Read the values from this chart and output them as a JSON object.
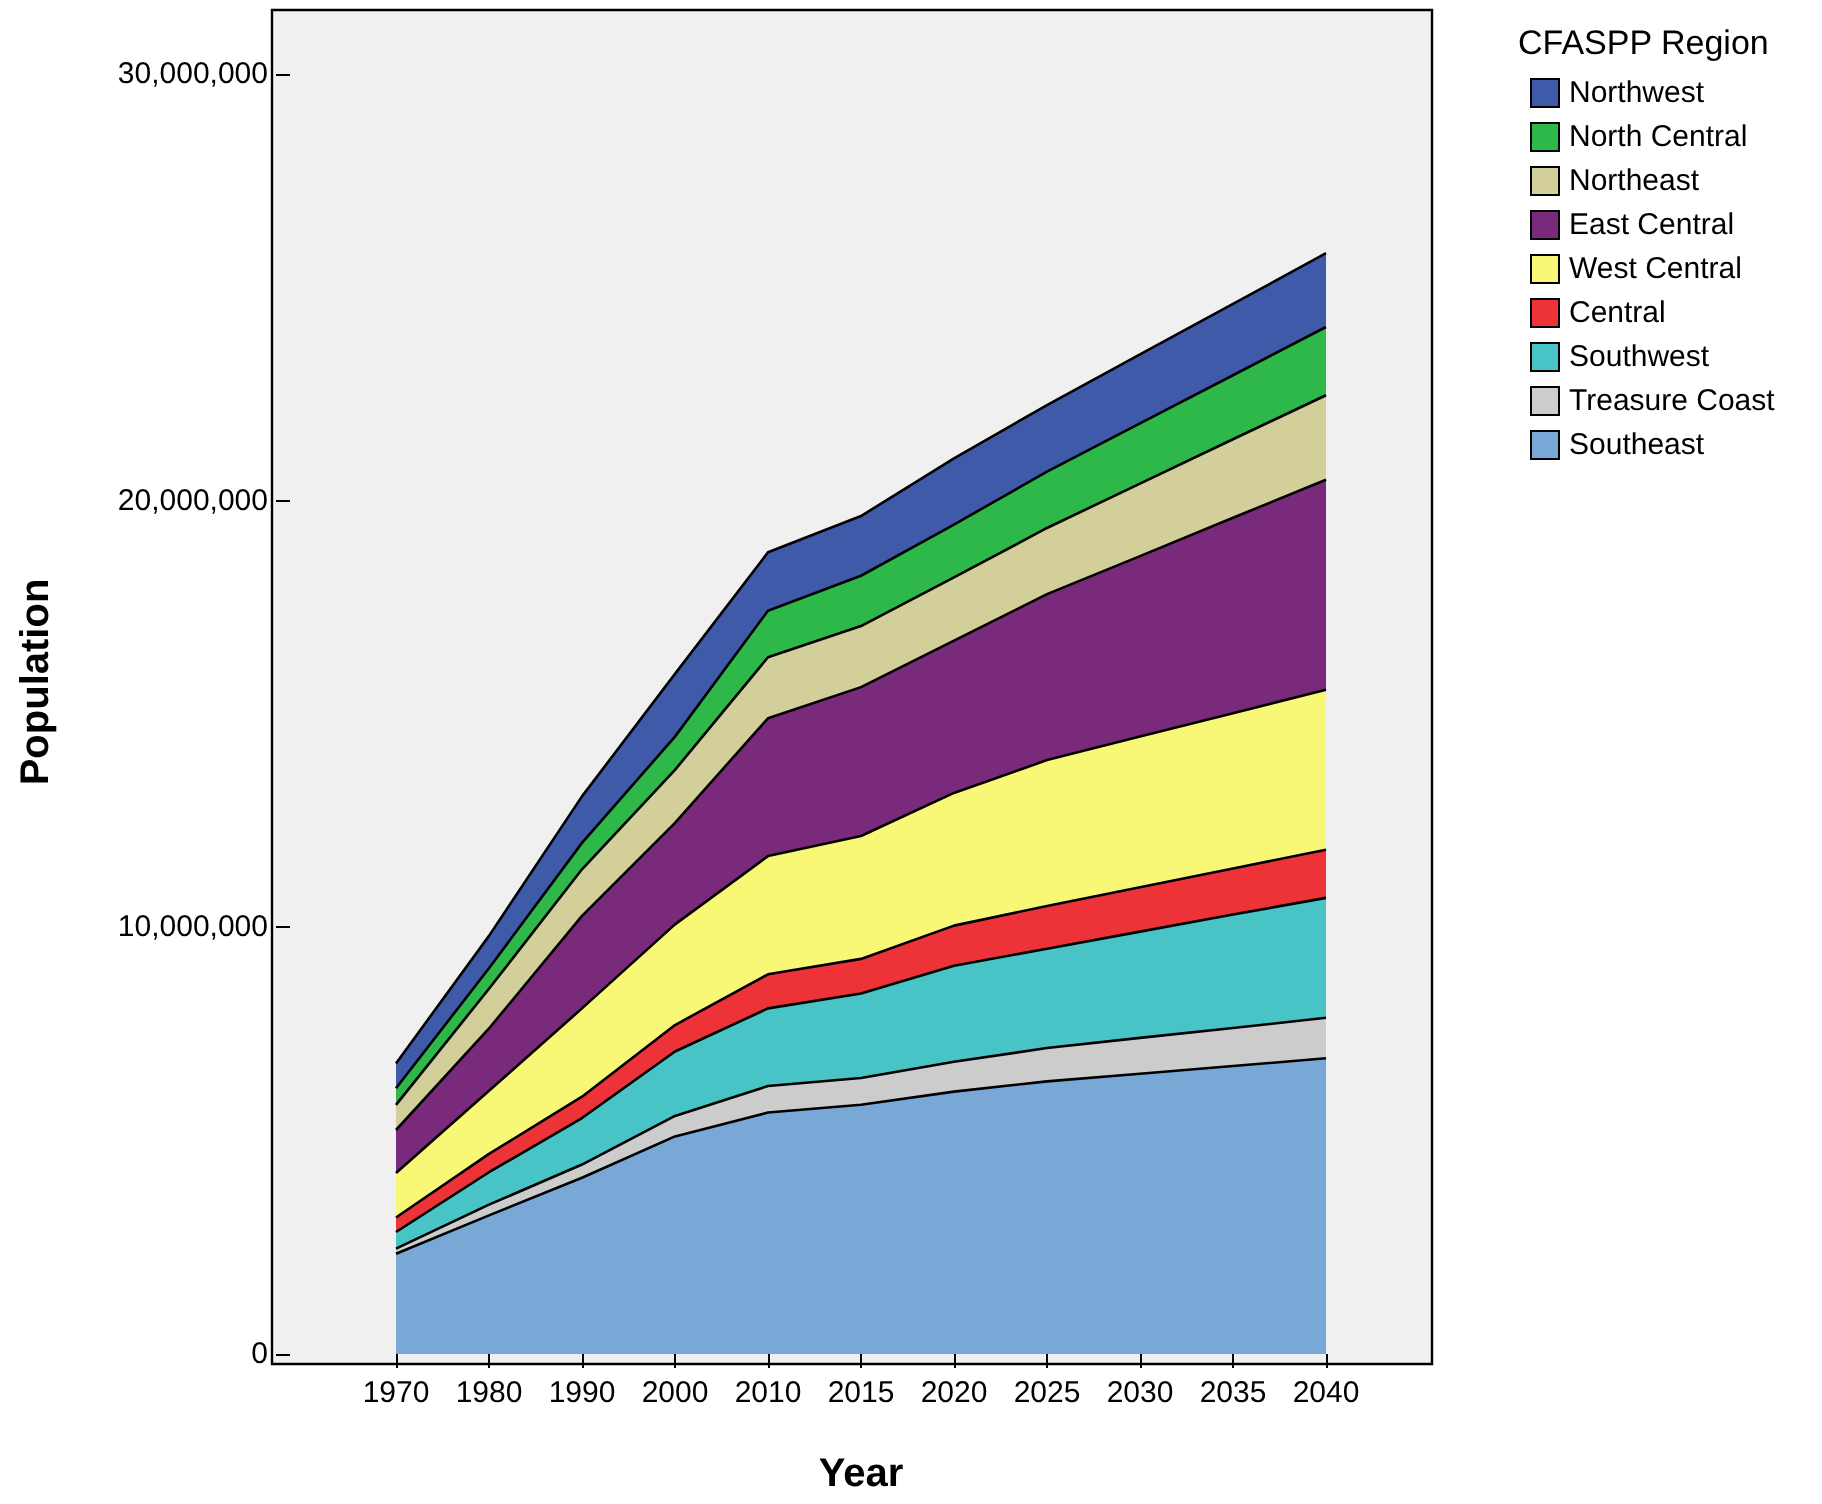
{
  "chart_data": {
    "type": "area",
    "stacked": true,
    "xlabel": "Year",
    "ylabel": "Population",
    "legend_title": "CFASPP Region",
    "legend": "top right",
    "grid": false,
    "categories": [
      "1970",
      "1980",
      "1990",
      "2000",
      "2010",
      "2015",
      "2020",
      "2025",
      "2030",
      "2035",
      "2040"
    ],
    "ylim": [
      0,
      31500000
    ],
    "yticks": [
      0,
      {
        "value": 10000000,
        "label": "10,000,000"
      },
      {
        "value": 20000000,
        "label": "20,000,000"
      },
      {
        "value": 30000000,
        "label": "30,000,000"
      }
    ],
    "series": [
      {
        "name": "Southeast",
        "color": "#7aa8d6",
        "values": [
          2350000,
          3250000,
          4130000,
          5100000,
          5660000,
          5840000,
          6150000,
          6390000,
          6570000,
          6750000,
          6930000
        ]
      },
      {
        "name": "Treasure Coast",
        "color": "#cccccc",
        "values": [
          120000,
          250000,
          310000,
          480000,
          620000,
          630000,
          700000,
          780000,
          840000,
          890000,
          950000
        ]
      },
      {
        "name": "Southwest",
        "color": "#48c3c6",
        "values": [
          390000,
          760000,
          1090000,
          1510000,
          1820000,
          1980000,
          2250000,
          2330000,
          2490000,
          2660000,
          2810000
        ]
      },
      {
        "name": "Central",
        "color": "#ee3338",
        "values": [
          340000,
          430000,
          500000,
          620000,
          800000,
          810000,
          940000,
          1000000,
          1040000,
          1080000,
          1130000
        ]
      },
      {
        "name": "West Central",
        "color": "#f9f876",
        "values": [
          1040000,
          1480000,
          2070000,
          2360000,
          2770000,
          2880000,
          3110000,
          3420000,
          3530000,
          3640000,
          3750000
        ]
      },
      {
        "name": "East Central",
        "color": "#7a2a7a",
        "values": [
          1010000,
          1460000,
          2170000,
          2380000,
          3230000,
          3490000,
          3570000,
          3890000,
          4230000,
          4580000,
          4920000
        ]
      },
      {
        "name": "Northeast",
        "color": "#d3cf9a",
        "values": [
          590000,
          930000,
          1090000,
          1240000,
          1430000,
          1430000,
          1480000,
          1550000,
          1700000,
          1840000,
          1980000
        ]
      },
      {
        "name": "North Central",
        "color": "#2fb84a",
        "values": [
          390000,
          480000,
          620000,
          780000,
          1090000,
          1180000,
          1240000,
          1320000,
          1410000,
          1500000,
          1600000
        ]
      },
      {
        "name": "Northwest",
        "color": "#3f5aa9",
        "values": [
          580000,
          760000,
          1090000,
          1470000,
          1370000,
          1400000,
          1550000,
          1560000,
          1620000,
          1670000,
          1730000
        ]
      }
    ]
  }
}
